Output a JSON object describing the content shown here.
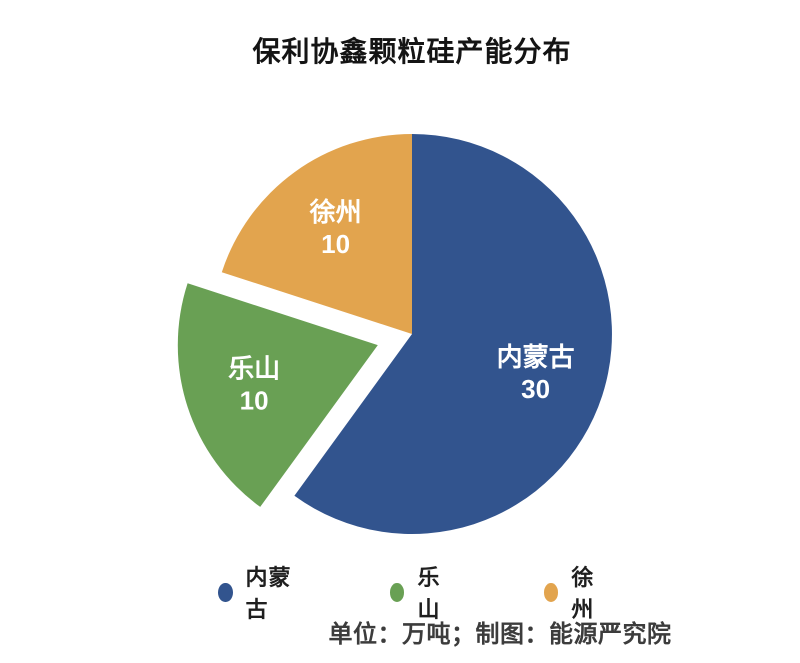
{
  "chart_data": {
    "type": "pie",
    "title": "保利协鑫颗粒硅产能分布",
    "categories": [
      "内蒙古",
      "乐山",
      "徐州"
    ],
    "values": [
      30,
      10,
      10
    ],
    "unit": "万吨",
    "colors": [
      "#32548E",
      "#69A054",
      "#E2A44E"
    ],
    "slice_label_color": "#ffffff",
    "start_angle_deg": 0,
    "direction": "clockwise",
    "exploded": [
      false,
      true,
      false
    ],
    "explode_distance": 36,
    "legend_position": "bottom"
  },
  "legend": {
    "items": [
      {
        "label": "内蒙古",
        "color": "#32548E"
      },
      {
        "label": "乐山",
        "color": "#69A054"
      },
      {
        "label": "徐州",
        "color": "#E2A44E"
      }
    ]
  },
  "footer": {
    "text": "单位：万吨；制图：能源严究院"
  }
}
